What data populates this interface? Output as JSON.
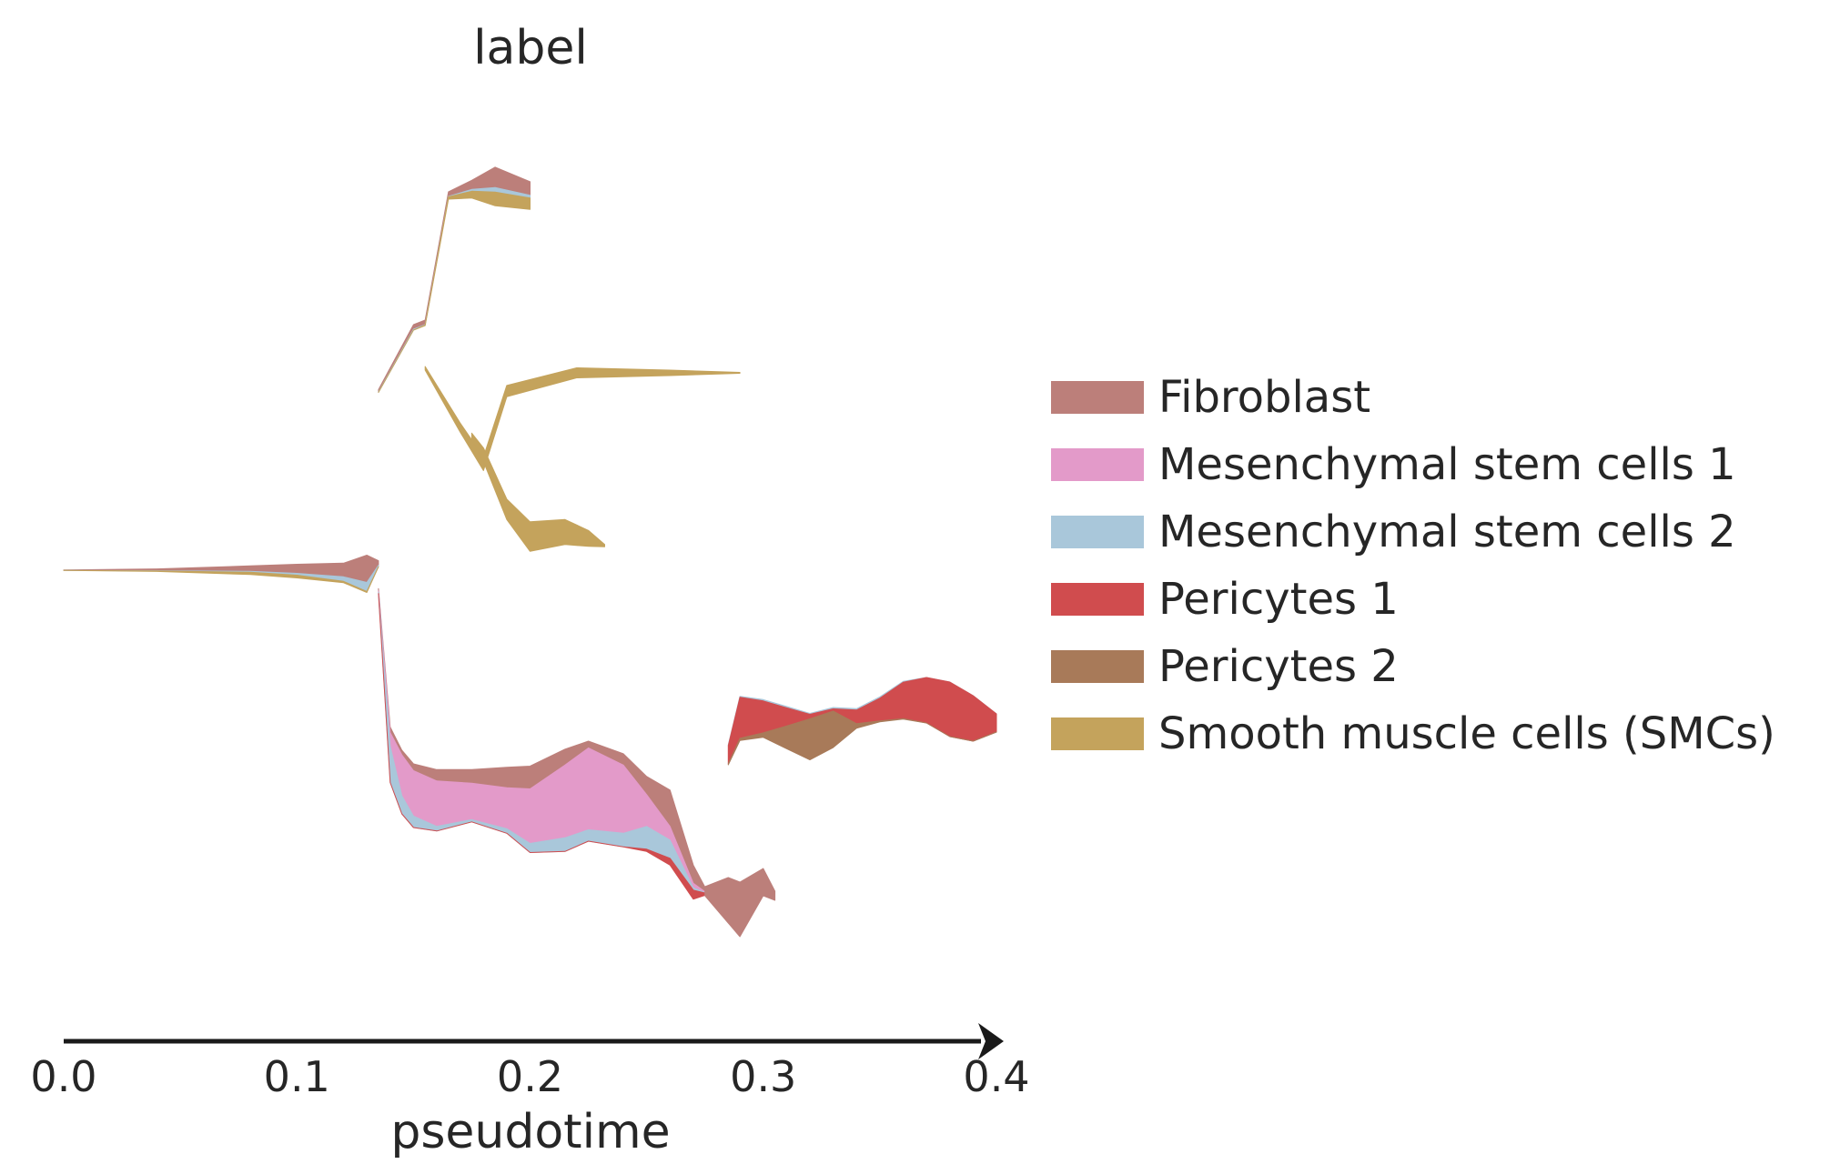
{
  "chart_data": {
    "type": "area",
    "title": "label",
    "xlabel": "pseudotime",
    "ylabel": "",
    "xlim": [
      0.0,
      0.4
    ],
    "xticks": [
      "0.0",
      "0.1",
      "0.2",
      "0.3",
      "0.4"
    ],
    "grid": false,
    "legend_position": "right",
    "series": [
      {
        "name": "Fibroblast",
        "color": "#bc7f7a"
      },
      {
        "name": "Mesenchymal stem cells 1",
        "color": "#e39ac9"
      },
      {
        "name": "Mesenchymal stem cells 2",
        "color": "#a9c7da"
      },
      {
        "name": "Pericytes 1",
        "color": "#d04c4e"
      },
      {
        "name": "Pericytes 2",
        "color": "#a87a59"
      },
      {
        "name": "Smooth muscle cells (SMCs)",
        "color": "#c4a35c"
      }
    ],
    "branches": [
      {
        "name": "root",
        "x": [
          0.0,
          0.04,
          0.08,
          0.1,
          0.12,
          0.13,
          0.135
        ],
        "widths": {
          "Fibroblast": [
            0.1,
            0.4,
            1.2,
            2.0,
            3.0,
            6.0,
            1.0
          ],
          "Mesenchymal stem cells 2": [
            0.0,
            0.05,
            0.2,
            0.4,
            1.0,
            2.0,
            0.3
          ],
          "Smooth muscle cells (SMCs)": [
            0.0,
            0.1,
            0.5,
            0.6,
            0.3,
            0.2,
            0.05
          ]
        }
      },
      {
        "name": "upper",
        "x": [
          0.135,
          0.15,
          0.155,
          0.165,
          0.175,
          0.185,
          0.2
        ],
        "widths": {
          "Fibroblast": [
            0.5,
            1.0,
            1.0,
            1.0,
            2.0,
            4.5,
            3.0
          ],
          "Mesenchymal stem cells 2": [
            0.1,
            0.2,
            0.1,
            0.1,
            0.4,
            1.0,
            0.6
          ],
          "Smooth muscle cells (SMCs)": [
            0.0,
            0.0,
            0.1,
            0.5,
            1.5,
            3.0,
            2.5
          ]
        }
      },
      {
        "name": "smc-high",
        "x": [
          0.155,
          0.17,
          0.18,
          0.19,
          0.22,
          0.26,
          0.29
        ],
        "widths": {
          "Smooth muscle cells (SMCs)": [
            0.8,
            2.0,
            3.0,
            2.5,
            2.2,
            1.2,
            0.2
          ]
        }
      },
      {
        "name": "smc-low",
        "x": [
          0.175,
          0.18,
          0.19,
          0.2,
          0.215,
          0.225,
          0.232
        ],
        "widths": {
          "Smooth muscle cells (SMCs)": [
            1.5,
            3.0,
            4.5,
            6.5,
            5.5,
            3.5,
            0.5
          ]
        }
      },
      {
        "name": "lower",
        "x": [
          0.135,
          0.14,
          0.145,
          0.15,
          0.16,
          0.175,
          0.19,
          0.2,
          0.215,
          0.225,
          0.24,
          0.25,
          0.26,
          0.27,
          0.275
        ],
        "widths": {
          "Fibroblast": [
            0.5,
            1.2,
            1.0,
            1.5,
            2.5,
            3.0,
            4.5,
            5.0,
            3.5,
            1.5,
            2.5,
            4.0,
            8.0,
            4.0,
            1.0
          ],
          "Mesenchymal stem cells 1": [
            0.3,
            3.0,
            9.0,
            10.0,
            10.0,
            8.0,
            9.0,
            12.0,
            16.0,
            18.0,
            15.0,
            7.0,
            3.0,
            1.0,
            0.2
          ],
          "Mesenchymal stem cells 2": [
            0.3,
            8.0,
            4.0,
            2.5,
            1.0,
            0.5,
            1.0,
            2.0,
            3.0,
            2.5,
            3.0,
            5.0,
            4.0,
            0.5,
            0.1
          ],
          "Pericytes 1": [
            0.0,
            0.0,
            0.0,
            0.0,
            0.0,
            0.0,
            0.0,
            0.0,
            0.0,
            0.0,
            0.0,
            0.5,
            1.5,
            2.0,
            0.5
          ]
        }
      },
      {
        "name": "fibroblast-bottom",
        "x": [
          0.275,
          0.285,
          0.29,
          0.3,
          0.305
        ],
        "widths": {
          "Fibroblast": [
            2.0,
            10.0,
            12.0,
            6.0,
            2.0
          ]
        }
      },
      {
        "name": "pericytes",
        "x": [
          0.285,
          0.29,
          0.3,
          0.31,
          0.32,
          0.33,
          0.34,
          0.35,
          0.36,
          0.37,
          0.38,
          0.39,
          0.4
        ],
        "widths": {
          "Pericytes 1": [
            4.0,
            9.0,
            7.0,
            4.0,
            1.0,
            0.5,
            3.0,
            5.0,
            8.0,
            10.0,
            12.0,
            10.0,
            4.0
          ],
          "Pericytes 2": [
            0.2,
            0.5,
            1.0,
            5.0,
            9.0,
            8.0,
            1.0,
            0.2,
            0.1,
            0.0,
            0.0,
            0.0,
            0.0
          ],
          "Mesenchymal stem cells 2": [
            0.2,
            0.2,
            0.3,
            0.3,
            0.2,
            0.3,
            0.3,
            0.3,
            0.2,
            0.0,
            0.0,
            0.0,
            0.0
          ]
        }
      }
    ]
  }
}
